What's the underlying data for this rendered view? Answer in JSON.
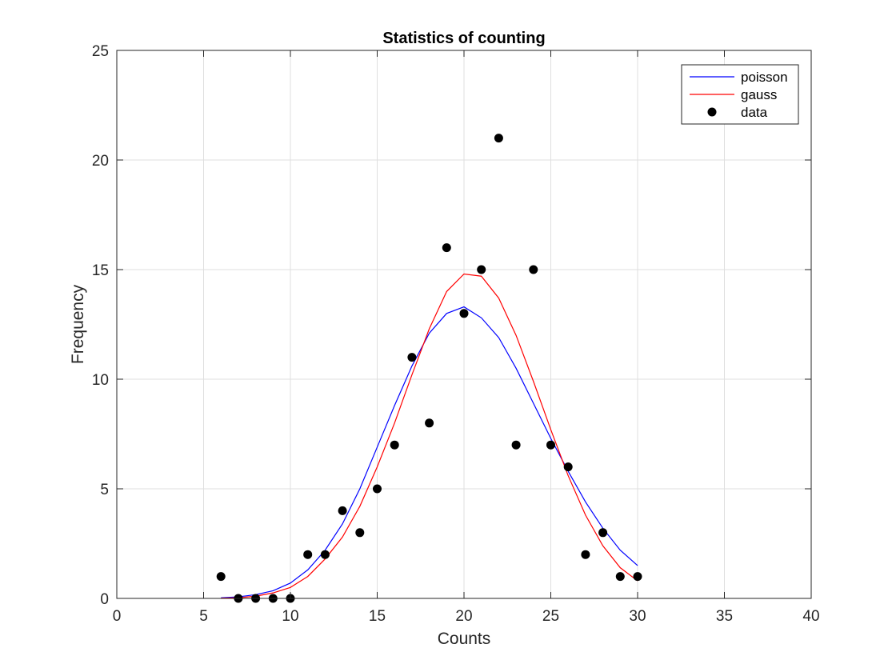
{
  "chart_data": {
    "type": "scatter",
    "title": "Statistics of counting",
    "xlabel": "Counts",
    "ylabel": "Frequency",
    "xlim": [
      0,
      40
    ],
    "ylim": [
      0,
      25
    ],
    "xticks": [
      0,
      5,
      10,
      15,
      20,
      25,
      30,
      35,
      40
    ],
    "yticks": [
      0,
      5,
      10,
      15,
      20,
      25
    ],
    "grid": true,
    "legend_position": "top-right",
    "series": [
      {
        "name": "poisson",
        "style": "line",
        "color": "#0000ff",
        "x": [
          6,
          7,
          8,
          9,
          10,
          11,
          12,
          13,
          14,
          15,
          16,
          17,
          18,
          19,
          20,
          21,
          22,
          23,
          24,
          25,
          26,
          27,
          28,
          29,
          30
        ],
        "y": [
          0.03,
          0.07,
          0.17,
          0.35,
          0.7,
          1.3,
          2.2,
          3.4,
          5.0,
          6.9,
          8.8,
          10.6,
          12.1,
          13.0,
          13.3,
          12.8,
          11.9,
          10.5,
          8.9,
          7.3,
          5.8,
          4.4,
          3.2,
          2.2,
          1.5
        ]
      },
      {
        "name": "gauss",
        "style": "line",
        "color": "#ff0000",
        "x": [
          6,
          7,
          8,
          9,
          10,
          11,
          12,
          13,
          14,
          15,
          16,
          17,
          18,
          19,
          20,
          21,
          22,
          23,
          24,
          25,
          26,
          27,
          28,
          29,
          30
        ],
        "y": [
          0.01,
          0.03,
          0.1,
          0.25,
          0.5,
          1.0,
          1.8,
          2.8,
          4.2,
          6.0,
          8.0,
          10.2,
          12.3,
          14.0,
          14.8,
          14.7,
          13.7,
          12.0,
          9.9,
          7.7,
          5.6,
          3.8,
          2.4,
          1.4,
          0.8
        ]
      },
      {
        "name": "data",
        "style": "marker",
        "color": "#000000",
        "x": [
          6,
          7,
          8,
          9,
          10,
          11,
          12,
          13,
          14,
          15,
          16,
          17,
          18,
          19,
          20,
          21,
          22,
          23,
          24,
          25,
          26,
          27,
          28,
          29,
          30
        ],
        "y": [
          1,
          0,
          0,
          0,
          0,
          2,
          2,
          4,
          3,
          5,
          7,
          11,
          8,
          16,
          13,
          15,
          21,
          7,
          15,
          7,
          6,
          2,
          3,
          1,
          1
        ]
      }
    ]
  }
}
